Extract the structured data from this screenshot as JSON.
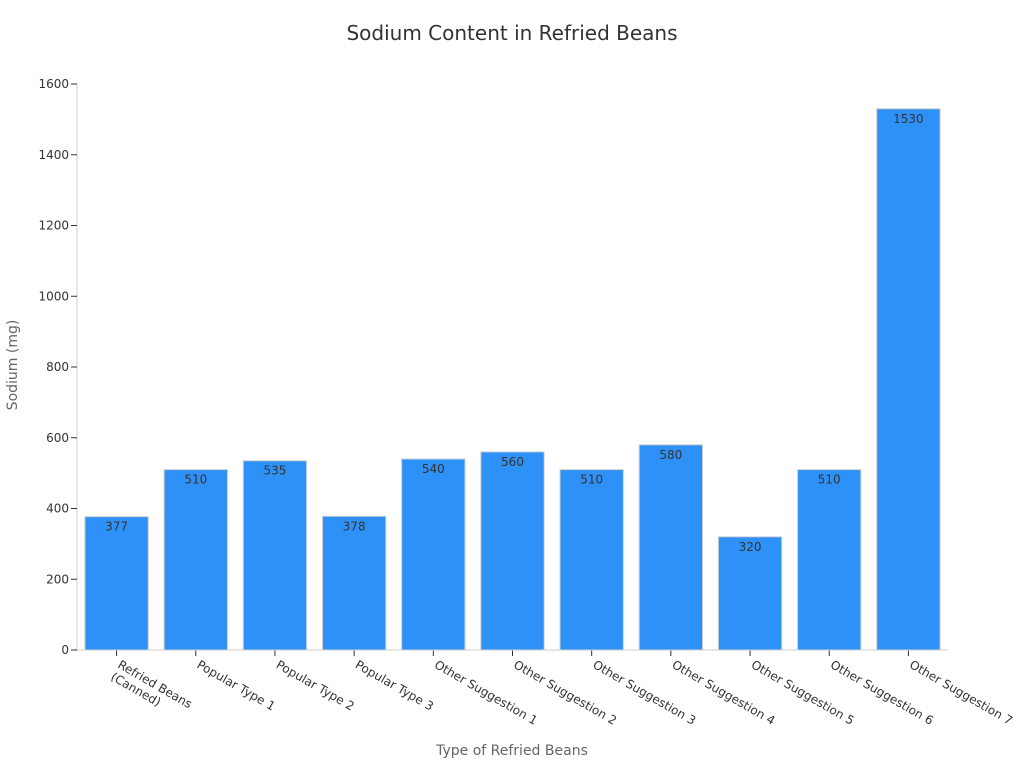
{
  "chart_data": {
    "type": "bar",
    "title": "Sodium Content in Refried Beans",
    "xlabel": "Type of Refried Beans",
    "ylabel": "Sodium (mg)",
    "ylim": [
      0,
      1600
    ],
    "yticks": [
      0,
      200,
      400,
      600,
      800,
      1000,
      1200,
      1400,
      1600
    ],
    "grid": false,
    "legend": "none",
    "categories": [
      [
        "Refried Beans",
        "(Canned)"
      ],
      [
        "Popular Type 1"
      ],
      [
        "Popular Type 2"
      ],
      [
        "Popular Type 3"
      ],
      [
        "Other Suggestion 1"
      ],
      [
        "Other Suggestion 2"
      ],
      [
        "Other Suggestion 3"
      ],
      [
        "Other Suggestion 4"
      ],
      [
        "Other Suggestion 5"
      ],
      [
        "Other Suggestion 6"
      ],
      [
        "Other Suggestion 7"
      ]
    ],
    "values": [
      377,
      510,
      535,
      378,
      540,
      560,
      510,
      580,
      320,
      510,
      1530
    ],
    "bar_color": "#2e91f7",
    "bar_edge_color": "#d0d0d0"
  }
}
